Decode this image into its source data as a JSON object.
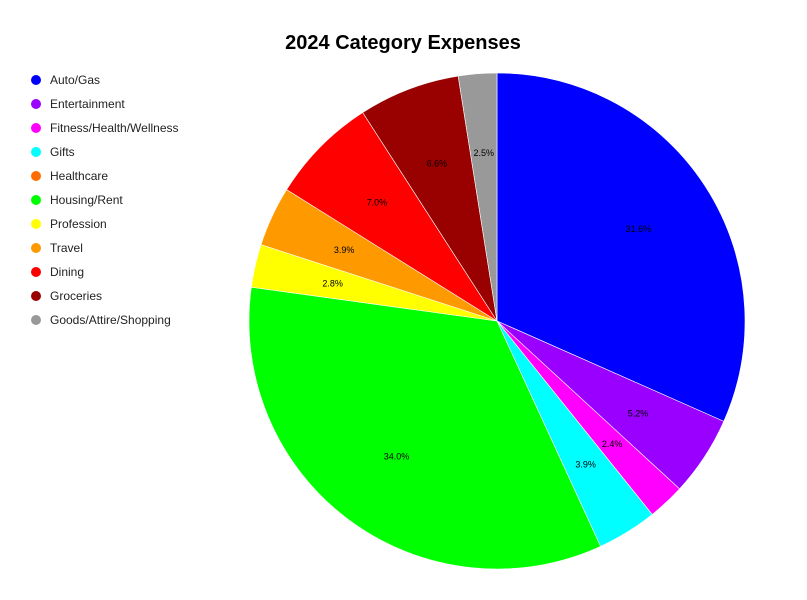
{
  "chart_data": {
    "type": "pie",
    "title": "2024 Category Expenses",
    "legend_position": "top-left",
    "start_angle": "12 o'clock",
    "direction": "clockwise",
    "slices": [
      {
        "name": "Auto/Gas",
        "value": 31.6,
        "label": "31.6%",
        "color": "#0000ff"
      },
      {
        "name": "Entertainment",
        "value": 5.2,
        "label": "5.2%",
        "color": "#9900ff"
      },
      {
        "name": "Fitness/Health/Wellness",
        "value": 2.4,
        "label": "2.4%",
        "color": "#ff00ff"
      },
      {
        "name": "Gifts",
        "value": 3.9,
        "label": "3.9%",
        "color": "#00ffff"
      },
      {
        "name": "Healthcare",
        "value": 0.0,
        "label": "",
        "color": "#ff6d01"
      },
      {
        "name": "Housing/Rent",
        "value": 34.0,
        "label": "34.0%",
        "color": "#00ff00"
      },
      {
        "name": "Profession",
        "value": 2.8,
        "label": "2.8%",
        "color": "#ffff00"
      },
      {
        "name": "Travel",
        "value": 3.9,
        "label": "3.9%",
        "color": "#ff9900"
      },
      {
        "name": "Dining",
        "value": 7.0,
        "label": "7.0%",
        "color": "#ff0000"
      },
      {
        "name": "Groceries",
        "value": 6.6,
        "label": "6.6%",
        "color": "#990000"
      },
      {
        "name": "Goods/Attire/Shopping",
        "value": 2.5,
        "label": "2.5%",
        "color": "#999999"
      }
    ]
  }
}
